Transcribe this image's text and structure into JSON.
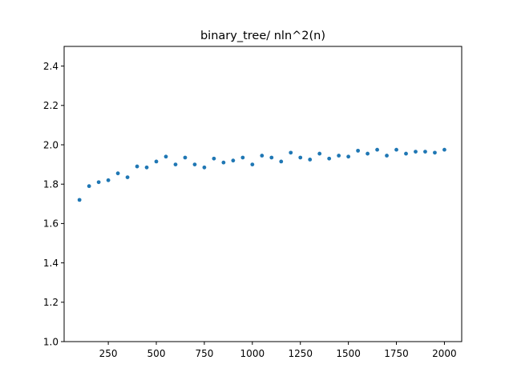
{
  "chart_data": {
    "type": "scatter",
    "title": "binary_tree/ nln^2(n)",
    "xlabel": "",
    "ylabel": "",
    "xlim": [
      20,
      2090
    ],
    "ylim": [
      1.0,
      2.5
    ],
    "xticks": [
      250,
      500,
      750,
      1000,
      1250,
      1500,
      1750,
      2000
    ],
    "yticks": [
      1.0,
      1.2,
      1.4,
      1.6,
      1.8,
      2.0,
      2.2,
      2.4
    ],
    "grid": false,
    "marker_color": "#1f77b4",
    "series": [
      {
        "x": [
          100,
          150,
          200,
          250,
          300,
          350,
          400,
          450,
          500,
          550,
          600,
          650,
          700,
          750,
          800,
          850,
          900,
          950,
          1000,
          1050,
          1100,
          1150,
          1200,
          1250,
          1300,
          1350,
          1400,
          1450,
          1500,
          1550,
          1600,
          1650,
          1700,
          1750,
          1800,
          1850,
          1900,
          1950,
          2000
        ],
        "y": [
          1.72,
          1.79,
          1.81,
          1.82,
          1.855,
          1.835,
          1.89,
          1.885,
          1.915,
          1.94,
          1.9,
          1.935,
          1.9,
          1.885,
          1.93,
          1.91,
          1.92,
          1.935,
          1.9,
          1.945,
          1.935,
          1.915,
          1.96,
          1.935,
          1.925,
          1.955,
          1.93,
          1.945,
          1.94,
          1.97,
          1.955,
          1.975,
          1.945,
          1.975,
          1.955,
          1.965,
          1.965,
          1.96,
          1.975
        ]
      }
    ]
  }
}
